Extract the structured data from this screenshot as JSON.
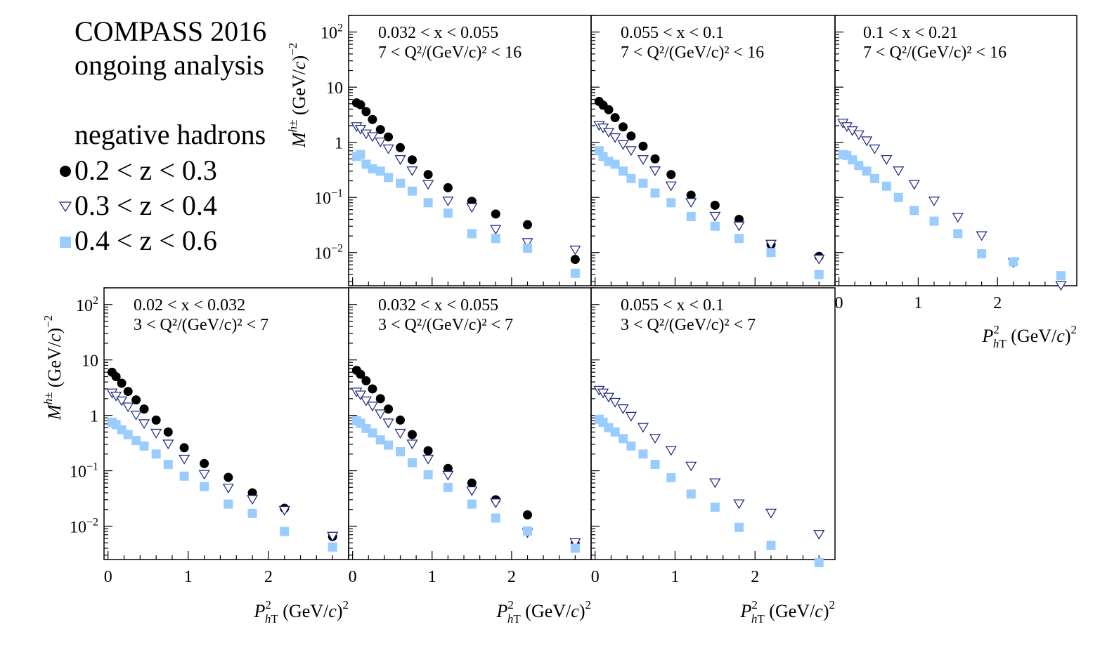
{
  "legend": {
    "title_line1": "COMPASS 2016",
    "title_line2": "ongoing analysis",
    "heading": "negative hadrons",
    "entries": [
      "0.2 < z < 0.3",
      "0.3 < z < 0.4",
      "0.4 < z < 0.6"
    ]
  },
  "colors": {
    "z1": "#000000",
    "z2": "#1a237e",
    "z3": "#99ccff"
  },
  "chart_data": {
    "type": "scatter",
    "title": "COMPASS 2016 ongoing analysis — negative hadrons",
    "xlabel": "P_hT^2 (GeV/c)^2",
    "ylabel": "M^{h±} (GeV/c)^-2",
    "xlim": [
      -0.05,
      3.0
    ],
    "ylim": [
      0.0025,
      200
    ],
    "yscale": "log",
    "x_ticks": [
      "0",
      "1",
      "2"
    ],
    "y_ticks": [
      "10^-2",
      "10^-1",
      "1",
      "10",
      "10^2"
    ],
    "series_names": [
      "0.2 < z < 0.3",
      "0.3 < z < 0.4",
      "0.4 < z < 0.6"
    ],
    "x": [
      0.05,
      0.1,
      0.17,
      0.25,
      0.35,
      0.45,
      0.6,
      0.75,
      0.95,
      1.2,
      1.5,
      1.8,
      2.2,
      2.8
    ],
    "panels": [
      {
        "label_x": "0.032 < x < 0.055",
        "label_q": "7 < Q²/(GeV/c)² < 16",
        "series": [
          {
            "name": "0.2 < z < 0.3",
            "values": [
              5.2,
              4.8,
              3.6,
              2.6,
              1.7,
              1.25,
              0.8,
              0.48,
              0.26,
              0.15,
              0.085,
              0.05,
              0.032,
              0.0075
            ]
          },
          {
            "name": "0.3 < z < 0.4",
            "values": [
              1.9,
              1.7,
              1.4,
              1.25,
              1.0,
              0.75,
              0.48,
              0.3,
              0.17,
              0.085,
              0.065,
              0.026,
              0.015,
              0.011
            ]
          },
          {
            "name": "0.4 < z < 0.6",
            "values": [
              0.55,
              0.6,
              0.4,
              0.33,
              0.3,
              0.23,
              0.18,
              0.13,
              0.08,
              0.052,
              0.022,
              0.018,
              0.012,
              0.0042
            ]
          }
        ]
      },
      {
        "label_x": "0.055 < x < 0.1",
        "label_q": "7 < Q²/(GeV/c)² < 16",
        "series": [
          {
            "name": "0.2 < z < 0.3",
            "values": [
              5.5,
              4.7,
              3.9,
              2.8,
              1.9,
              1.3,
              0.85,
              0.5,
              0.26,
              0.11,
              0.072,
              0.04,
              0.014,
              0.0085
            ]
          },
          {
            "name": "0.3 < z < 0.4",
            "values": [
              2.0,
              1.8,
              1.5,
              1.2,
              0.9,
              0.7,
              0.48,
              0.3,
              0.16,
              0.08,
              0.045,
              0.03,
              0.014,
              0.0075
            ]
          },
          {
            "name": "0.4 < z < 0.6",
            "values": [
              0.7,
              0.55,
              0.45,
              0.4,
              0.3,
              0.22,
              0.18,
              0.12,
              0.08,
              0.045,
              0.03,
              0.018,
              0.01,
              0.004
            ]
          }
        ]
      },
      {
        "label_x": "0.1 < x < 0.21",
        "label_q": "7 < Q²/(GeV/c)² < 16",
        "series": [
          {
            "name": "0.3 < z < 0.4",
            "values": [
              2.2,
              1.9,
              1.6,
              1.35,
              1.05,
              0.75,
              0.48,
              0.3,
              0.17,
              0.085,
              0.043,
              0.02,
              0.0065,
              0.0025
            ]
          },
          {
            "name": "0.4 < z < 0.6",
            "values": [
              0.6,
              0.58,
              0.48,
              0.38,
              0.3,
              0.22,
              0.16,
              0.1,
              0.058,
              0.037,
              0.022,
              0.0095,
              0.0068,
              0.0038
            ]
          }
        ]
      },
      {
        "label_x": "0.02 < x < 0.032",
        "label_q": "3 < Q²/(GeV/c)² < 7",
        "series": [
          {
            "name": "0.2 < z < 0.3",
            "values": [
              6.0,
              5.0,
              3.8,
              2.7,
              1.9,
              1.3,
              0.82,
              0.5,
              0.26,
              0.135,
              0.076,
              0.04,
              0.021,
              0.0065
            ]
          },
          {
            "name": "0.3 < z < 0.4",
            "values": [
              2.5,
              2.2,
              1.8,
              1.4,
              1.0,
              0.7,
              0.47,
              0.3,
              0.16,
              0.085,
              0.048,
              0.03,
              0.019,
              0.0065
            ]
          },
          {
            "name": "0.4 < z < 0.6",
            "values": [
              0.75,
              0.68,
              0.55,
              0.45,
              0.35,
              0.28,
              0.2,
              0.13,
              0.08,
              0.052,
              0.025,
              0.017,
              0.008,
              0.0042
            ]
          }
        ]
      },
      {
        "label_x": "0.032 < x < 0.055",
        "label_q": "3 < Q²/(GeV/c)² < 7",
        "series": [
          {
            "name": "0.2 < z < 0.3",
            "values": [
              6.5,
              5.5,
              4.2,
              3.0,
              2.0,
              1.3,
              0.82,
              0.45,
              0.23,
              0.11,
              0.06,
              0.03,
              0.016,
              0.0048
            ]
          },
          {
            "name": "0.3 < z < 0.4",
            "values": [
              2.6,
              2.3,
              1.8,
              1.45,
              1.05,
              0.72,
              0.47,
              0.3,
              0.16,
              0.082,
              0.043,
              0.026,
              0.0075,
              0.005
            ]
          },
          {
            "name": "0.4 < z < 0.6",
            "values": [
              0.8,
              0.72,
              0.58,
              0.48,
              0.36,
              0.29,
              0.22,
              0.14,
              0.085,
              0.05,
              0.025,
              0.014,
              0.0082,
              0.004
            ]
          }
        ]
      },
      {
        "label_x": "0.055 < x < 0.1",
        "label_q": "3 < Q²/(GeV/c)² < 7",
        "series": [
          {
            "name": "0.3 < z < 0.4",
            "values": [
              2.8,
              2.5,
              2.1,
              1.7,
              1.3,
              0.95,
              0.6,
              0.38,
              0.23,
              0.12,
              0.06,
              0.025,
              0.017,
              0.007
            ]
          },
          {
            "name": "0.4 < z < 0.6",
            "values": [
              0.85,
              0.75,
              0.6,
              0.5,
              0.38,
              0.28,
              0.2,
              0.13,
              0.075,
              0.038,
              0.022,
              0.0095,
              0.0045,
              0.0022
            ]
          }
        ]
      }
    ]
  }
}
